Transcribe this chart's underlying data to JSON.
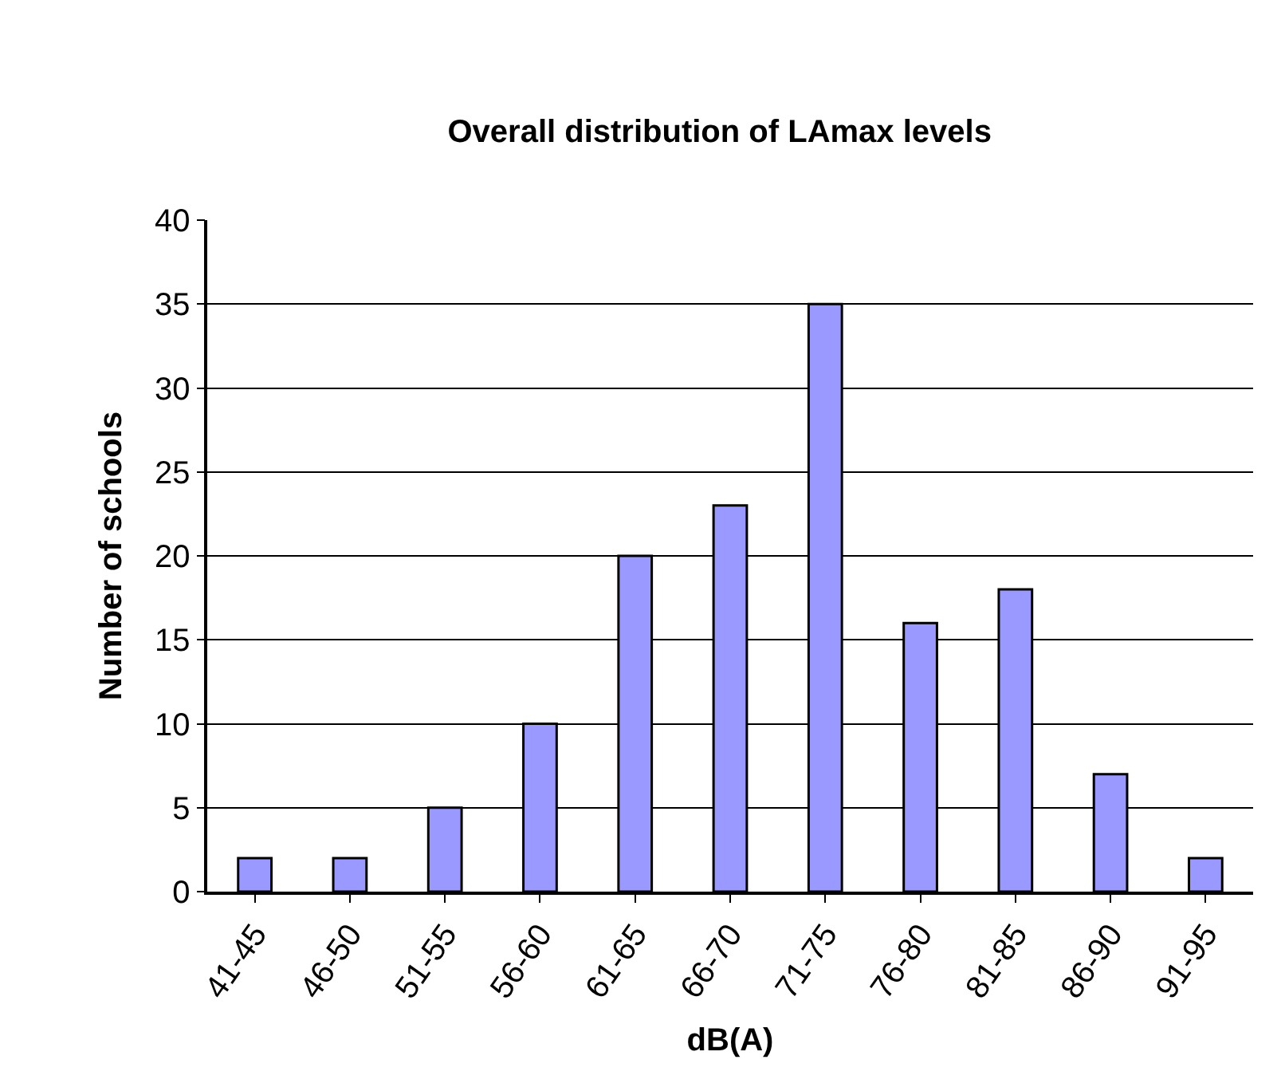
{
  "chart_data": {
    "type": "bar",
    "title": "Overall distribution of LAmax levels",
    "xlabel": "dB(A)",
    "ylabel": "Number of schools",
    "categories": [
      "41-45",
      "46-50",
      "51-55",
      "56-60",
      "61-65",
      "66-70",
      "71-75",
      "76-80",
      "81-85",
      "86-90",
      "91-95"
    ],
    "values": [
      2,
      2,
      5,
      10,
      20,
      23,
      35,
      16,
      18,
      7,
      2
    ],
    "color": "#9999ff",
    "ylim": [
      0,
      40
    ],
    "yticks": [
      0,
      5,
      10,
      15,
      20,
      25,
      30,
      35,
      40
    ],
    "grid": "y"
  }
}
